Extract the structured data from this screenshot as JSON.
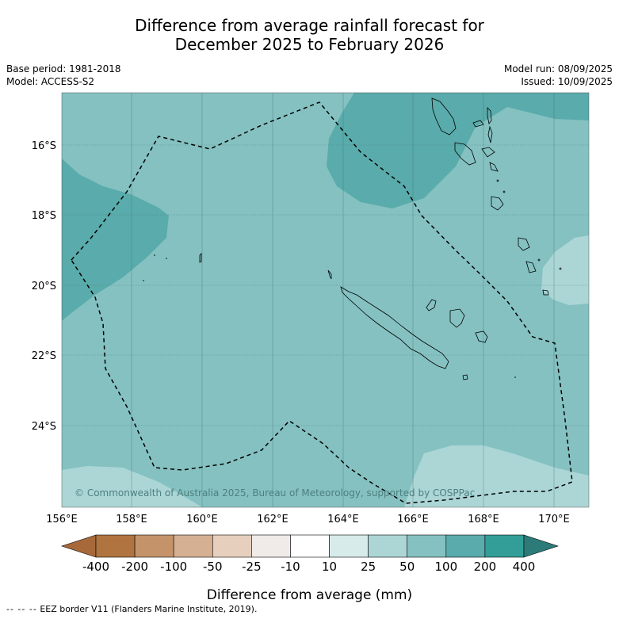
{
  "header": {
    "title_line1": "Difference from average rainfall forecast for",
    "title_line2": "December 2025 to February 2026",
    "base_period": "Base period: 1981-2018",
    "model": "Model: ACCESS-S2",
    "model_run": "Model run: 08/09/2025",
    "issued": "Issued: 10/09/2025"
  },
  "map": {
    "lat_labels": [
      "16°S",
      "18°S",
      "20°S",
      "22°S",
      "24°S"
    ],
    "lon_labels": [
      "156°E",
      "158°E",
      "160°E",
      "162°E",
      "164°E",
      "166°E",
      "168°E",
      "170°E"
    ],
    "copyright": "© Commonwealth of Australia 2025, Bureau of Meteorology, supported by COSPPac",
    "region_colors": {
      "base_25_50": "#85c1c1",
      "wetter_50_100": "#5aabab",
      "drier_10_25": "#acd6d6"
    }
  },
  "colorbar": {
    "tick_labels": [
      "-400",
      "-200",
      "-100",
      "-50",
      "-25",
      "-10",
      "10",
      "25",
      "50",
      "100",
      "200",
      "400"
    ],
    "colors": [
      "#a8693a",
      "#b07440",
      "#c4936a",
      "#d5b092",
      "#e6d0bd",
      "#f0ebe8",
      "#ffffff",
      "#d6ebea",
      "#acd6d6",
      "#85c1c1",
      "#5aabab",
      "#339e98",
      "#2c7b78"
    ],
    "label": "Difference from average (mm)"
  },
  "legend": {
    "eez_dashes": "-- -- --",
    "eez_text": "EEZ border V11 (Flanders Marine Institute, 2019)."
  }
}
